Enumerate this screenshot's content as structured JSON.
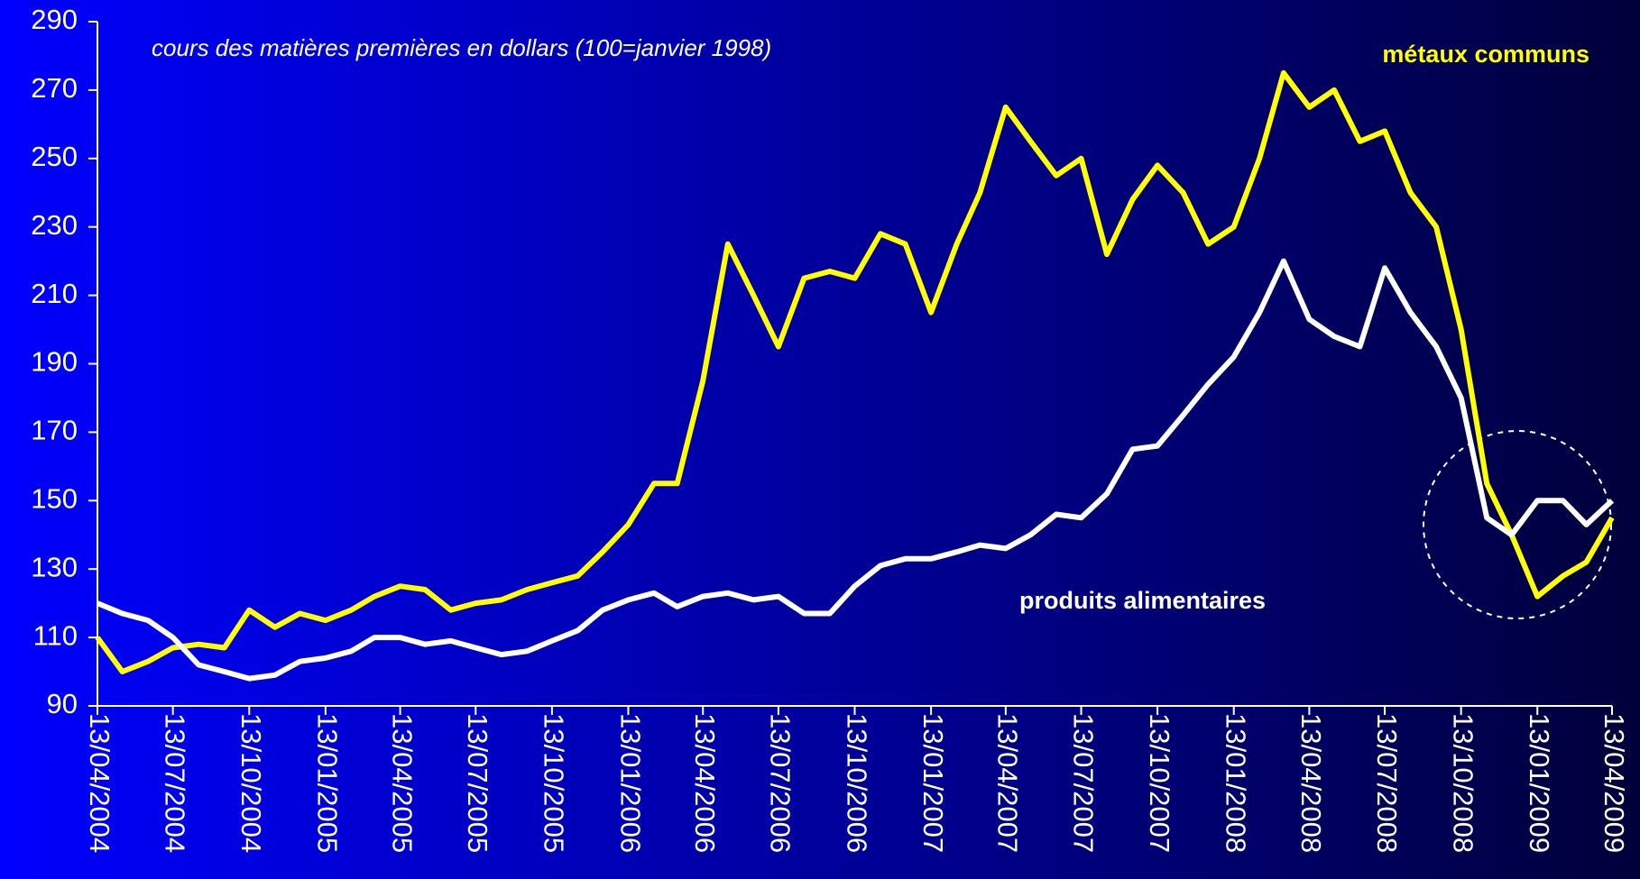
{
  "chart_data": {
    "type": "line",
    "subtitle": "cours des matières premières en dollars (100=janvier 1998)",
    "annotations": [
      "métaux communs",
      "produits alimentaires"
    ],
    "x": [
      "13/04/2004",
      "13/05/2004",
      "13/06/2004",
      "13/07/2004",
      "13/08/2004",
      "13/09/2004",
      "13/10/2004",
      "13/11/2004",
      "13/12/2004",
      "13/01/2005",
      "13/02/2005",
      "13/03/2005",
      "13/04/2005",
      "13/05/2005",
      "13/06/2005",
      "13/07/2005",
      "13/08/2005",
      "13/09/2005",
      "13/10/2005",
      "13/11/2005",
      "13/12/2005",
      "13/01/2006",
      "13/02/2006",
      "13/03/2006",
      "13/04/2006",
      "13/05/2006",
      "13/06/2006",
      "13/07/2006",
      "13/08/2006",
      "13/09/2006",
      "13/10/2006",
      "13/11/2006",
      "13/12/2006",
      "13/01/2007",
      "13/02/2007",
      "13/03/2007",
      "13/04/2007",
      "13/05/2007",
      "13/06/2007",
      "13/07/2007",
      "13/08/2007",
      "13/09/2007",
      "13/10/2007",
      "13/11/2007",
      "13/12/2007",
      "13/01/2008",
      "13/02/2008",
      "13/03/2008",
      "13/04/2008",
      "13/05/2008",
      "13/06/2008",
      "13/07/2008",
      "13/08/2008",
      "13/09/2008",
      "13/10/2008",
      "13/11/2008",
      "13/12/2008",
      "13/01/2009",
      "13/02/2009",
      "13/03/2009",
      "13/04/2009"
    ],
    "series": [
      {
        "name": "métaux communs",
        "color": "#ffff00",
        "values": [
          110,
          100,
          103,
          107,
          108,
          107,
          118,
          113,
          117,
          115,
          118,
          122,
          125,
          124,
          118,
          120,
          121,
          124,
          126,
          128,
          135,
          143,
          155,
          155,
          185,
          225,
          210,
          195,
          215,
          217,
          215,
          228,
          225,
          205,
          225,
          240,
          265,
          255,
          245,
          250,
          222,
          238,
          248,
          240,
          225,
          230,
          250,
          275,
          265,
          270,
          255,
          258,
          240,
          230,
          200,
          155,
          140,
          122,
          128,
          132,
          145
        ]
      },
      {
        "name": "produits alimentaires",
        "color": "#ffffff",
        "values": [
          120,
          117,
          115,
          110,
          102,
          100,
          98,
          99,
          103,
          104,
          106,
          110,
          110,
          108,
          109,
          107,
          105,
          106,
          109,
          112,
          118,
          121,
          123,
          119,
          122,
          123,
          121,
          122,
          117,
          117,
          125,
          131,
          133,
          133,
          135,
          137,
          136,
          140,
          146,
          145,
          152,
          165,
          166,
          175,
          184,
          192,
          205,
          220,
          203,
          198,
          195,
          218,
          205,
          195,
          180,
          145,
          140,
          150,
          150,
          143,
          150
        ]
      }
    ],
    "xlim": [
      "13/04/2004",
      "13/04/2009"
    ],
    "xticks": [
      "13/04/2004",
      "13/07/2004",
      "13/10/2004",
      "13/01/2005",
      "13/04/2005",
      "13/07/2005",
      "13/10/2005",
      "13/01/2006",
      "13/04/2006",
      "13/07/2006",
      "13/10/2006",
      "13/01/2007",
      "13/04/2007",
      "13/07/2007",
      "13/10/2007",
      "13/01/2008",
      "13/04/2008",
      "13/07/2008",
      "13/10/2008",
      "13/01/2009",
      "13/04/2009"
    ],
    "ylim": [
      90,
      290
    ],
    "yticks": [
      90,
      110,
      130,
      150,
      170,
      190,
      210,
      230,
      250,
      270,
      290
    ]
  }
}
